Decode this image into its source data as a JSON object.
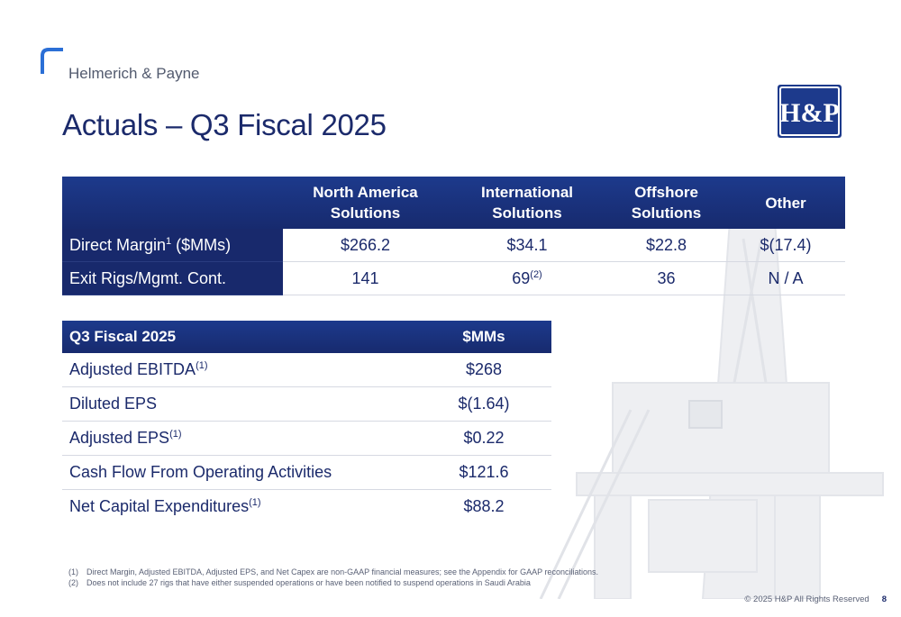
{
  "brand": {
    "company": "Helmerich & Payne"
  },
  "page": {
    "title": "Actuals – Q3 Fiscal 2025"
  },
  "logo": {
    "text": "H&P",
    "color": "#1d3a8c"
  },
  "segments_table": {
    "headers": [
      "",
      "North America\nSolutions",
      "International\nSolutions",
      "Offshore\nSolutions",
      "Other"
    ],
    "rows": [
      {
        "label": "Direct Margin",
        "label_sup": "1",
        "label_suffix": " ($MMs)",
        "values": [
          "$266.2",
          "$34.1",
          "$22.8",
          "$(17.4)"
        ]
      },
      {
        "label": "Exit Rigs/Mgmt. Cont.",
        "values": [
          "141",
          "69",
          "36",
          "N / A"
        ],
        "value_sups": [
          "",
          "(2)",
          "",
          ""
        ]
      }
    ]
  },
  "summary_table": {
    "headers": [
      "Q3 Fiscal 2025",
      "$MMs"
    ],
    "rows": [
      {
        "label": "Adjusted EBITDA",
        "sup": "(1)",
        "value": "$268"
      },
      {
        "label": "Diluted EPS",
        "sup": "",
        "value": "$(1.64)"
      },
      {
        "label": "Adjusted EPS",
        "sup": "(1)",
        "value": "$0.22"
      },
      {
        "label": "Cash Flow From Operating Activities",
        "sup": "",
        "value": "$121.6"
      },
      {
        "label": "Net Capital Expenditures",
        "sup": "(1)",
        "value": "$88.2"
      }
    ]
  },
  "footnotes": [
    {
      "num": "(1)",
      "text": "Direct Margin, Adjusted EBITDA, Adjusted EPS, and Net Capex are non-GAAP financial measures; see the Appendix for GAAP reconciliations."
    },
    {
      "num": "(2)",
      "text": "Does not include 27 rigs that have either suspended operations or have been notified to suspend operations in Saudi Arabia"
    }
  ],
  "footer": {
    "copyright": "© 2025 H&P All Rights Reserved",
    "page_number": "8"
  },
  "colors": {
    "navy": "#1b2a6b",
    "header_blue": "#1d3a8c",
    "accent": "#2b6fd6"
  }
}
